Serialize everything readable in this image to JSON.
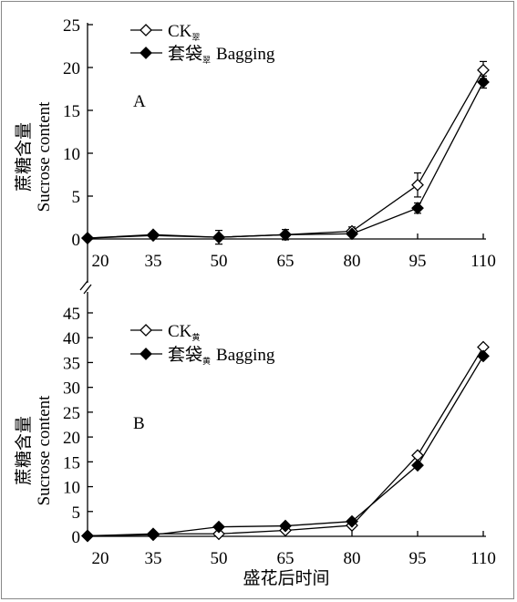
{
  "chart_data": [
    {
      "type": "line",
      "panel_label": "A",
      "ylabel_cn": "蔗糖含量",
      "ylabel_en": "Sucrose content",
      "x": [
        20,
        35,
        50,
        65,
        80,
        95,
        110
      ],
      "x_tick_labels": [
        "20",
        "35",
        "50",
        "65",
        "80",
        "95",
        "110"
      ],
      "y_ticks": [
        0,
        5,
        10,
        15,
        20,
        25
      ],
      "ylim": [
        0,
        25
      ],
      "series": [
        {
          "name": "CK",
          "name_sub": "翠",
          "marker": "open-diamond",
          "values": [
            0.1,
            0.5,
            0.2,
            0.5,
            0.9,
            6.3,
            19.7
          ],
          "errors": [
            0.0,
            0.0,
            0.8,
            0.6,
            0.5,
            1.4,
            1.0
          ]
        },
        {
          "name": "套袋",
          "name_sub": "翠",
          "name_suffix": "Bagging",
          "marker": "filled-diamond",
          "values": [
            0.1,
            0.4,
            0.2,
            0.5,
            0.6,
            3.6,
            18.3
          ],
          "errors": [
            0.0,
            0.0,
            0.0,
            0.0,
            0.0,
            0.6,
            0.7
          ]
        }
      ]
    },
    {
      "type": "line",
      "panel_label": "B",
      "ylabel_cn": "蔗糖含量",
      "ylabel_en": "Sucrose content",
      "xlabel": "盛花后时间",
      "x": [
        20,
        35,
        50,
        65,
        80,
        95,
        110
      ],
      "x_tick_labels": [
        "20",
        "35",
        "50",
        "65",
        "80",
        "95",
        "110"
      ],
      "y_ticks": [
        0,
        5,
        10,
        15,
        20,
        25,
        30,
        35,
        40,
        45
      ],
      "ylim": [
        0,
        45
      ],
      "series": [
        {
          "name": "CK",
          "name_sub": "黄",
          "marker": "open-diamond",
          "values": [
            0.1,
            0.5,
            0.5,
            1.2,
            2.2,
            16.3,
            38.1
          ],
          "errors": [
            0,
            0,
            0,
            0,
            0,
            0,
            0
          ]
        },
        {
          "name": "套袋",
          "name_sub": "黄",
          "name_suffix": "Bagging",
          "marker": "filled-diamond",
          "values": [
            0.1,
            0.3,
            1.9,
            2.1,
            3.0,
            14.3,
            36.3
          ],
          "errors": [
            0,
            0,
            0,
            0,
            0,
            0,
            0
          ]
        }
      ]
    }
  ]
}
